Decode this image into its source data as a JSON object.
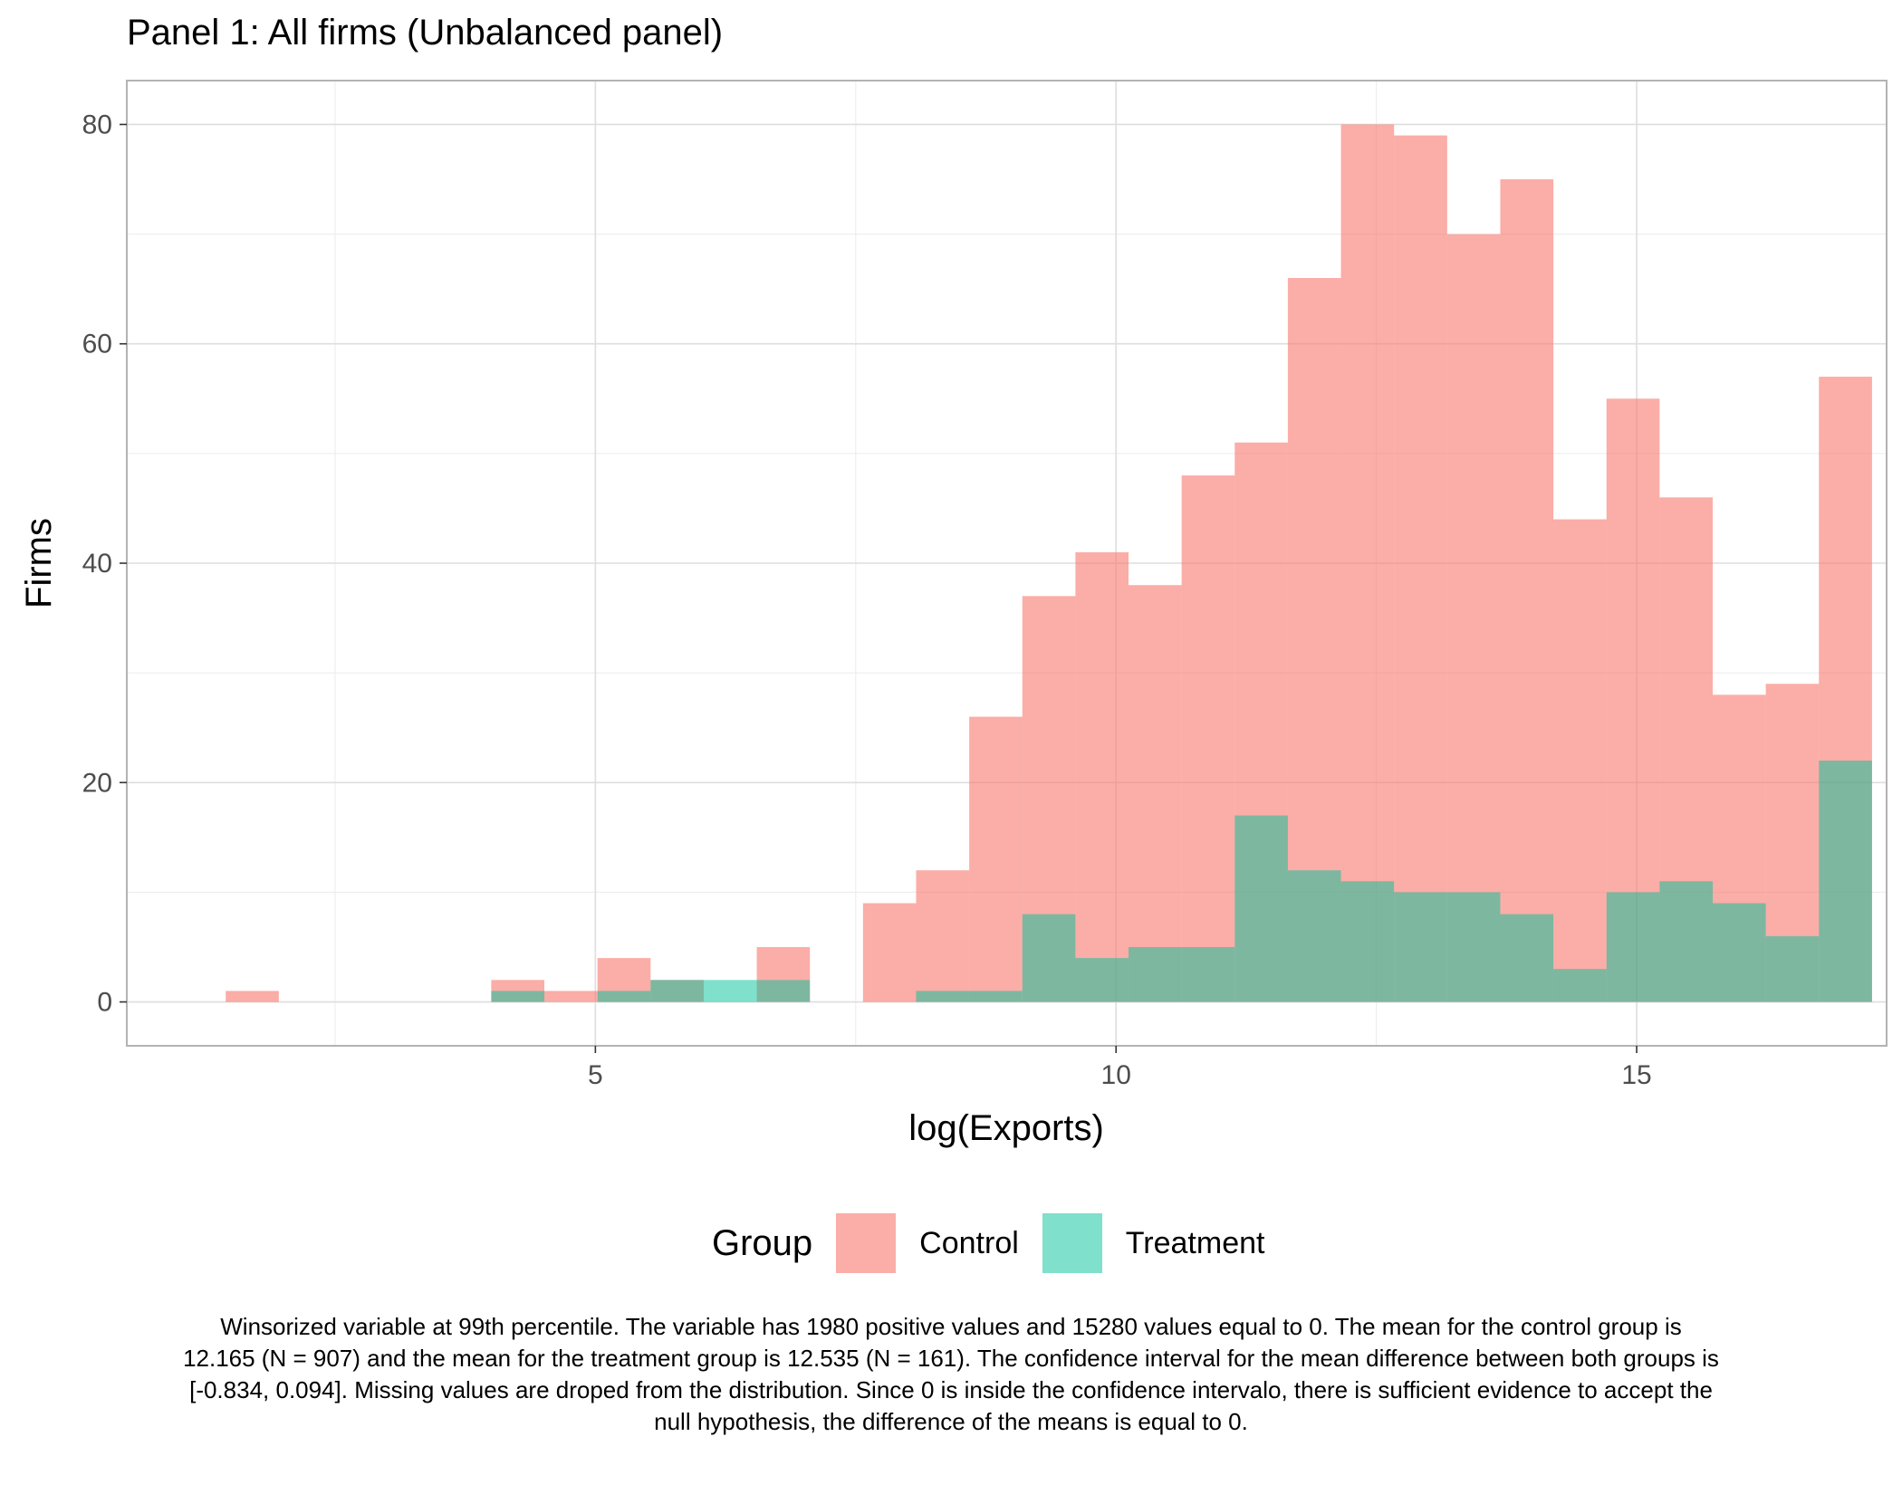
{
  "chart_data": {
    "type": "bar",
    "title": "Panel 1: All firms (Unbalanced panel)",
    "xlabel": "log(Exports)",
    "ylabel": "Firms",
    "xlim": [
      0.5,
      17.4
    ],
    "ylim": [
      -4,
      84
    ],
    "x_ticks": [
      5,
      10,
      15
    ],
    "y_ticks": [
      0,
      20,
      40,
      60,
      80
    ],
    "grid": true,
    "legend_position": "bottom",
    "legend_title": "Group",
    "bin_start": 1.45,
    "bin_width": 0.51,
    "series": [
      {
        "name": "Control",
        "color": "#f8766d",
        "values": [
          1,
          0,
          0,
          0,
          0,
          2,
          1,
          4,
          2,
          0,
          5,
          0,
          9,
          12,
          26,
          37,
          41,
          38,
          48,
          51,
          66,
          80,
          79,
          70,
          75,
          44,
          55,
          46,
          28,
          29,
          57
        ]
      },
      {
        "name": "Treatment",
        "color": "#00c19a",
        "values": [
          0,
          0,
          0,
          0,
          0,
          1,
          0,
          1,
          2,
          2,
          2,
          0,
          0,
          1,
          1,
          8,
          4,
          5,
          5,
          17,
          12,
          11,
          10,
          10,
          8,
          3,
          10,
          11,
          9,
          6,
          22
        ]
      }
    ]
  },
  "legend": {
    "title": "Group",
    "items": [
      {
        "label": "Control",
        "color": "#f8766d"
      },
      {
        "label": "Treatment",
        "color": "#00c19a"
      }
    ]
  },
  "caption": "Winsorized variable at 99th percentile. The variable has 1980 positive values and 15280 values equal to 0. The mean for the control group is 12.165 (N = 907) and the mean for the treatment group is 12.535 (N = 161). The confidence interval for the mean difference between both groups is [-0.834, 0.094]. Missing values are droped from the distribution. Since 0 is inside the confidence intervalo, there is sufficient evidence to accept the null hypothesis, the difference of the means is equal to 0."
}
